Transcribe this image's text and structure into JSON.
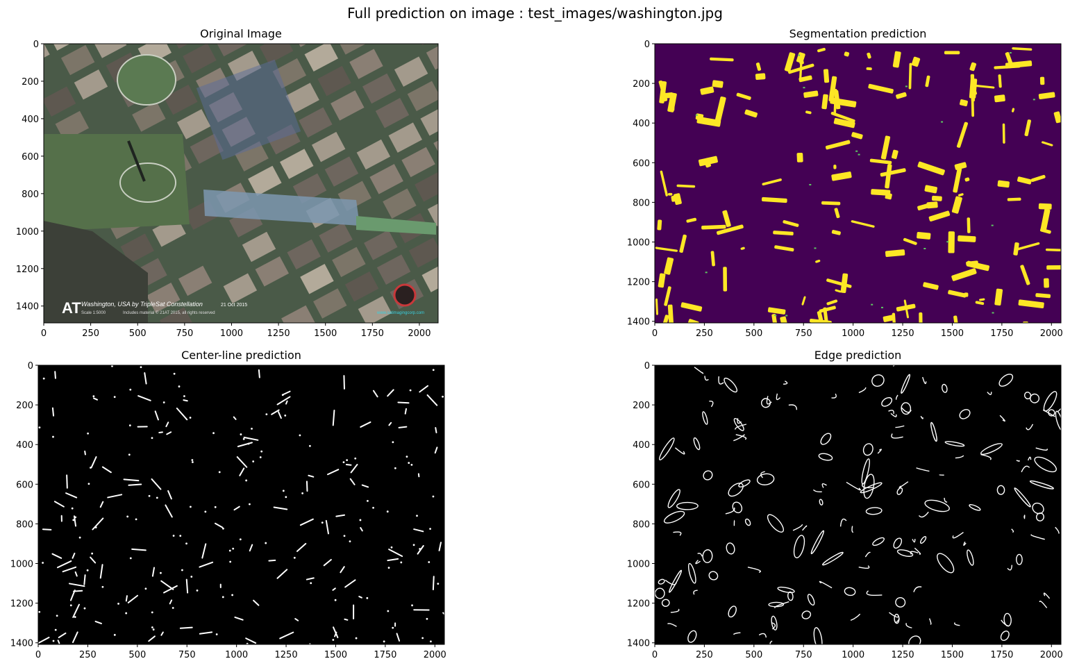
{
  "suptitle": "Full prediction on image : test_images/washington.jpg",
  "colors": {
    "viridis_dark": "#440154",
    "viridis_yellow": "#fde725",
    "viridis_mid": "#5ec962",
    "mask_white": "#ffffff",
    "mask_black": "#000000",
    "satellite_base": "#4a5a48"
  },
  "panels": [
    {
      "title": "Original Image",
      "kind": "photo",
      "extent": {
        "width": 2100,
        "height": 1490
      },
      "xticks": [
        0,
        250,
        500,
        750,
        1000,
        1250,
        1500,
        1750,
        2000
      ],
      "yticks": [
        0,
        200,
        400,
        600,
        800,
        1000,
        1200,
        1400
      ],
      "watermark": {
        "caption": "Washington, USA by TripleSat Constellation",
        "date": "21 Oct 2015",
        "scale": "Scale 1:5000",
        "credit": "Includes material © 21AT 2015, all rights reserved",
        "url": "www.satimagingcorp.com",
        "logo": "AT"
      }
    },
    {
      "title": "Segmentation prediction",
      "kind": "segmentation",
      "extent": {
        "width": 2048,
        "height": 1408
      },
      "xticks": [
        0,
        250,
        500,
        750,
        1000,
        1250,
        1500,
        1750,
        2000
      ],
      "yticks": [
        0,
        200,
        400,
        600,
        800,
        1000,
        1200,
        1400
      ]
    },
    {
      "title": "Center-line prediction",
      "kind": "centerline",
      "extent": {
        "width": 2048,
        "height": 1408
      },
      "xticks": [
        0,
        250,
        500,
        750,
        1000,
        1250,
        1500,
        1750,
        2000
      ],
      "yticks": [
        0,
        200,
        400,
        600,
        800,
        1000,
        1200,
        1400
      ]
    },
    {
      "title": "Edge prediction",
      "kind": "edge",
      "extent": {
        "width": 2048,
        "height": 1408
      },
      "xticks": [
        0,
        250,
        500,
        750,
        1000,
        1250,
        1500,
        1750,
        2000
      ],
      "yticks": [
        0,
        200,
        400,
        600,
        800,
        1000,
        1200,
        1400
      ]
    }
  ]
}
